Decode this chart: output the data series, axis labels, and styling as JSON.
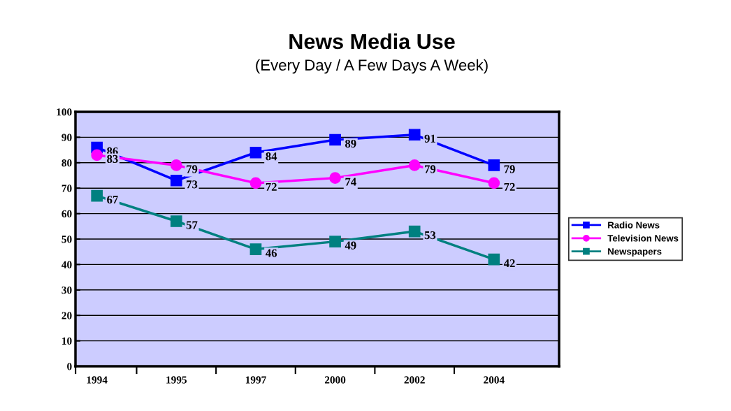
{
  "chart_data": {
    "type": "line",
    "title": "News Media Use",
    "subtitle": "(Every Day / A Few Days A Week)",
    "categories": [
      "1994",
      "1995",
      "1997",
      "2000",
      "2002",
      "2004"
    ],
    "series": [
      {
        "name": "Radio News",
        "color": "#0000ff",
        "marker": "square",
        "values": [
          86,
          73,
          84,
          89,
          91,
          79
        ]
      },
      {
        "name": "Television News",
        "color": "#ff00ff",
        "marker": "circle",
        "values": [
          83,
          79,
          72,
          74,
          79,
          72
        ]
      },
      {
        "name": "Newspapers",
        "color": "#008080",
        "marker": "square",
        "values": [
          67,
          57,
          46,
          49,
          53,
          42
        ]
      }
    ],
    "ylim": [
      0,
      100
    ],
    "yticks": [
      0,
      10,
      20,
      30,
      40,
      50,
      60,
      70,
      80,
      90,
      100
    ],
    "grid": "y",
    "legend": "right",
    "data_labels": true,
    "line_style": "solid"
  }
}
